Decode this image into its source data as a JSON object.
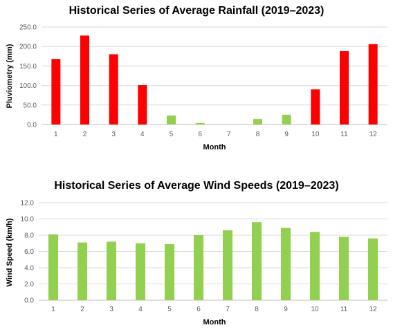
{
  "chart_data": [
    {
      "type": "bar",
      "title": "Historical Series of Average Rainfall (2019–2023)",
      "xlabel": "Month",
      "ylabel": "Pluviometry (mm)",
      "categories": [
        "1",
        "2",
        "3",
        "4",
        "5",
        "6",
        "7",
        "8",
        "9",
        "10",
        "11",
        "12"
      ],
      "values": [
        168,
        228,
        180,
        101,
        23,
        4,
        0,
        14,
        25,
        90,
        188,
        206
      ],
      "bar_colors": [
        "#ff0000",
        "#ff0000",
        "#ff0000",
        "#ff0000",
        "#92d050",
        "#92d050",
        "#92d050",
        "#92d050",
        "#92d050",
        "#ff0000",
        "#ff0000",
        "#ff0000"
      ],
      "ylim": [
        0,
        250
      ],
      "yticks": [
        "0.0",
        "50.0",
        "100.0",
        "150.0",
        "200.0",
        "250.0"
      ],
      "grid": true,
      "legend": "none"
    },
    {
      "type": "bar",
      "title": "Historical Series of Average Wind Speeds (2019–2023)",
      "xlabel": "Month",
      "ylabel": "Wind Speed (km/h)",
      "categories": [
        "1",
        "2",
        "3",
        "4",
        "5",
        "6",
        "7",
        "8",
        "9",
        "10",
        "11",
        "12"
      ],
      "values": [
        8.1,
        7.1,
        7.2,
        7.0,
        6.9,
        8.0,
        8.6,
        9.6,
        8.9,
        8.4,
        7.8,
        7.6
      ],
      "bar_colors": [
        "#92d050",
        "#92d050",
        "#92d050",
        "#92d050",
        "#92d050",
        "#92d050",
        "#92d050",
        "#92d050",
        "#92d050",
        "#92d050",
        "#92d050",
        "#92d050"
      ],
      "ylim": [
        0,
        12
      ],
      "yticks": [
        "0.0",
        "2.0",
        "4.0",
        "6.0",
        "8.0",
        "10.0",
        "12.0"
      ],
      "grid": true,
      "legend": "none"
    }
  ]
}
